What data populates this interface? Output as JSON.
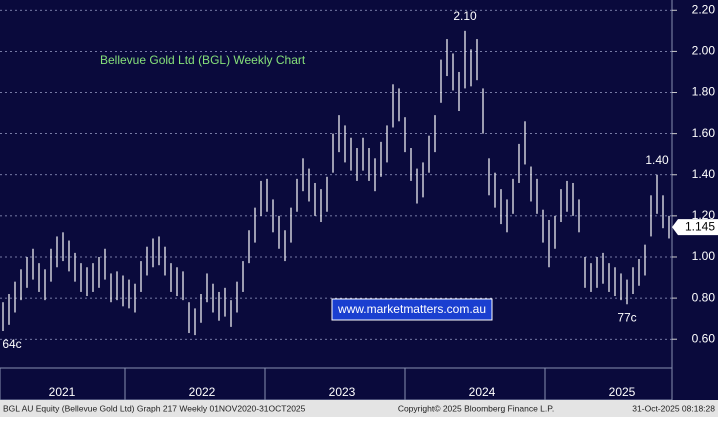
{
  "chart_data": {
    "type": "ohlc",
    "title": "Bellevue Gold Ltd (BGL) Weekly Chart",
    "color": "#ffffff",
    "high": [
      0.78,
      0.82,
      0.88,
      0.94,
      1.0,
      1.04,
      0.97,
      0.94,
      1.04,
      1.1,
      1.12,
      1.08,
      1.02,
      0.97,
      0.95,
      0.97,
      1.0,
      1.04,
      0.92,
      0.93,
      0.91,
      0.89,
      0.87,
      0.98,
      1.05,
      1.09,
      1.1,
      1.05,
      0.97,
      0.95,
      0.93,
      0.78,
      0.75,
      0.82,
      0.92,
      0.87,
      0.83,
      0.85,
      0.79,
      0.88,
      0.98,
      1.13,
      1.24,
      1.37,
      1.38,
      1.28,
      1.2,
      1.13,
      1.24,
      1.38,
      1.48,
      1.43,
      1.36,
      1.33,
      1.39,
      1.6,
      1.69,
      1.64,
      1.58,
      1.53,
      1.58,
      1.53,
      1.48,
      1.56,
      1.64,
      1.84,
      1.82,
      1.68,
      1.53,
      1.43,
      1.46,
      1.59,
      1.69,
      1.96,
      2.06,
      1.99,
      1.9,
      2.1,
      2.01,
      2.06,
      1.82,
      1.48,
      1.41,
      1.33,
      1.28,
      1.38,
      1.55,
      1.66,
      1.44,
      1.38,
      1.23,
      1.18,
      1.2,
      1.33,
      1.37,
      1.36,
      1.28,
      1.0,
      0.97,
      1.0,
      1.02,
      0.97,
      0.95,
      0.92,
      0.89,
      0.95,
      0.99,
      1.06,
      1.3,
      1.4,
      1.3,
      1.2
    ],
    "low": [
      0.64,
      0.67,
      0.73,
      0.79,
      0.85,
      0.89,
      0.83,
      0.79,
      0.88,
      0.95,
      0.98,
      0.93,
      0.88,
      0.83,
      0.81,
      0.83,
      0.85,
      0.89,
      0.78,
      0.79,
      0.76,
      0.75,
      0.73,
      0.83,
      0.91,
      0.95,
      0.96,
      0.91,
      0.83,
      0.81,
      0.79,
      0.63,
      0.62,
      0.68,
      0.78,
      0.73,
      0.69,
      0.71,
      0.66,
      0.73,
      0.83,
      0.97,
      1.07,
      1.2,
      1.22,
      1.12,
      1.04,
      0.98,
      1.07,
      1.22,
      1.32,
      1.27,
      1.2,
      1.17,
      1.22,
      1.41,
      1.51,
      1.46,
      1.42,
      1.37,
      1.42,
      1.37,
      1.32,
      1.39,
      1.46,
      1.63,
      1.66,
      1.51,
      1.37,
      1.26,
      1.29,
      1.41,
      1.51,
      1.75,
      1.88,
      1.81,
      1.71,
      1.82,
      1.83,
      1.86,
      1.6,
      1.3,
      1.24,
      1.16,
      1.12,
      1.21,
      1.36,
      1.45,
      1.27,
      1.21,
      1.07,
      0.95,
      1.04,
      1.17,
      1.22,
      1.2,
      1.12,
      0.85,
      0.83,
      0.85,
      0.87,
      0.83,
      0.81,
      0.79,
      0.77,
      0.82,
      0.86,
      0.91,
      1.1,
      1.21,
      1.14,
      1.09
    ],
    "last_price": 1.145,
    "annotations": [
      {
        "text": "2.10",
        "value": 2.1
      },
      {
        "text": "1.40",
        "value": 1.4
      },
      {
        "text": "77c",
        "value": 0.77
      },
      {
        "text": "64c",
        "value": 0.64
      }
    ],
    "x_labels": [
      "2021",
      "2022",
      "2023",
      "2024",
      "2025"
    ],
    "ylim": [
      0.46,
      2.25
    ],
    "yticks": [
      {
        "value": 0.6,
        "label": "0.60"
      },
      {
        "value": 0.8,
        "label": "0.80"
      },
      {
        "value": 1.0,
        "label": "1.00"
      },
      {
        "value": 1.2,
        "label": "1.20"
      },
      {
        "value": 1.4,
        "label": "1.40"
      },
      {
        "value": 1.6,
        "label": "1.60"
      },
      {
        "value": 1.8,
        "label": "1.80"
      },
      {
        "value": 2.0,
        "label": "2.00"
      },
      {
        "value": 2.2,
        "label": "2.20"
      }
    ],
    "grid": true
  },
  "watermark": "www.marketmatters.com.au",
  "footer": {
    "left": "BGL AU Equity (Bellevue Gold Ltd) Graph 217 Weekly 01NOV2020-31OCT2025",
    "center": "Copyright© 2025 Bloomberg Finance L.P.",
    "right": "31-Oct-2025 08:18:28"
  }
}
